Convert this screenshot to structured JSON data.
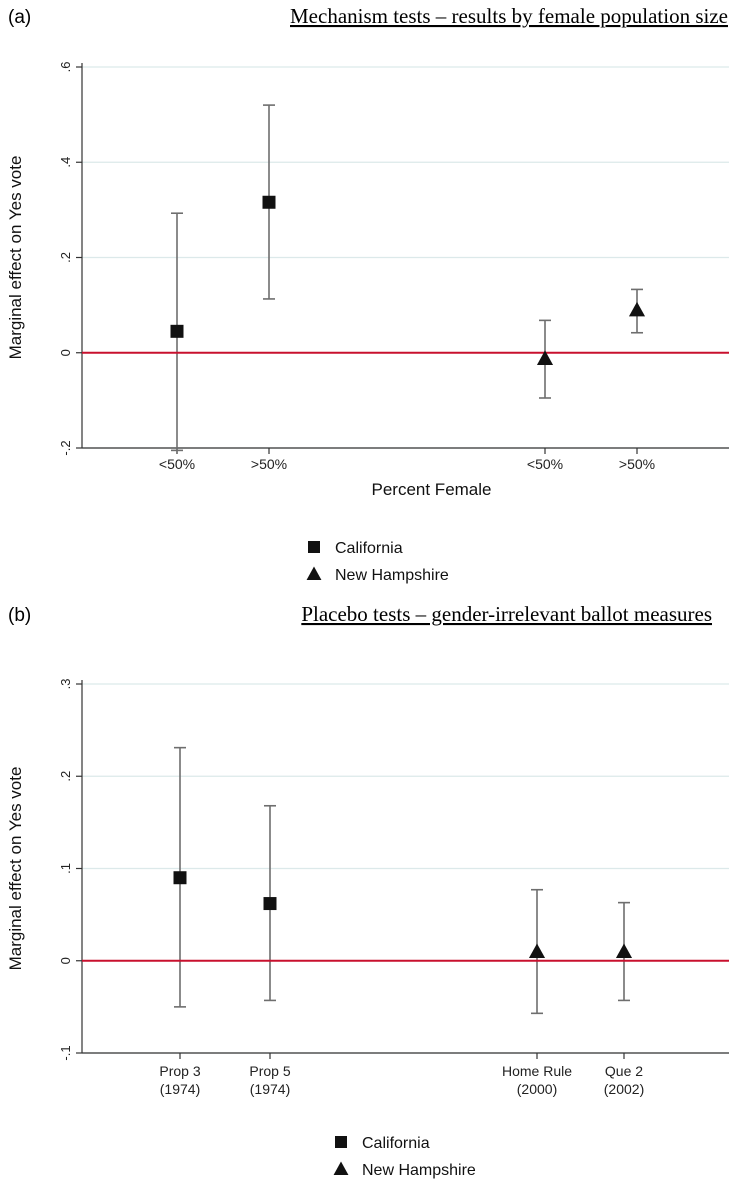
{
  "chart_data": [
    {
      "type": "scatter",
      "panel_label": "(a)",
      "title": "Mechanism tests – results by female population size",
      "xlabel": "Percent Female",
      "ylabel": "Marginal effect on Yes vote",
      "ylim": [
        -0.2,
        0.6
      ],
      "yticks": [
        -0.2,
        0,
        0.2,
        0.4,
        0.6
      ],
      "ytick_labels": [
        "-.2",
        "0",
        ".2",
        ".4",
        ".6"
      ],
      "grid": true,
      "reference_line": 0,
      "reference_line_color": "#c8102e",
      "categories": [
        "<50%",
        ">50%",
        "<50%",
        ">50%"
      ],
      "legend_position": "bottom-center",
      "series": [
        {
          "name": "California",
          "marker": "square",
          "points": [
            {
              "category_index": 0,
              "estimate": 0.045,
              "ci_low": -0.205,
              "ci_high": 0.293
            },
            {
              "category_index": 1,
              "estimate": 0.316,
              "ci_low": 0.113,
              "ci_high": 0.52
            }
          ]
        },
        {
          "name": "New Hampshire",
          "marker": "triangle",
          "points": [
            {
              "category_index": 2,
              "estimate": -0.012,
              "ci_low": -0.095,
              "ci_high": 0.068
            },
            {
              "category_index": 3,
              "estimate": 0.09,
              "ci_low": 0.042,
              "ci_high": 0.133
            }
          ]
        }
      ]
    },
    {
      "type": "scatter",
      "panel_label": "(b)",
      "title": "Placebo tests – gender-irrelevant ballot measures",
      "xlabel": "",
      "ylabel": "Marginal effect on Yes vote",
      "ylim": [
        -0.1,
        0.3
      ],
      "yticks": [
        -0.1,
        0,
        0.1,
        0.2,
        0.3
      ],
      "ytick_labels": [
        "-.1",
        "0",
        ".1",
        ".2",
        ".3"
      ],
      "grid": true,
      "reference_line": 0,
      "reference_line_color": "#c8102e",
      "categories": [
        [
          "Prop 3",
          "(1974)"
        ],
        [
          "Prop 5",
          "(1974)"
        ],
        [
          "Home Rule",
          "(2000)"
        ],
        [
          "Que 2",
          "(2002)"
        ]
      ],
      "legend_position": "bottom-center",
      "series": [
        {
          "name": "California",
          "marker": "square",
          "points": [
            {
              "category_index": 0,
              "estimate": 0.09,
              "ci_low": -0.05,
              "ci_high": 0.231
            },
            {
              "category_index": 1,
              "estimate": 0.062,
              "ci_low": -0.043,
              "ci_high": 0.168
            }
          ]
        },
        {
          "name": "New Hampshire",
          "marker": "triangle",
          "points": [
            {
              "category_index": 2,
              "estimate": 0.01,
              "ci_low": -0.057,
              "ci_high": 0.077
            },
            {
              "category_index": 3,
              "estimate": 0.01,
              "ci_low": -0.043,
              "ci_high": 0.063
            }
          ]
        }
      ]
    }
  ]
}
